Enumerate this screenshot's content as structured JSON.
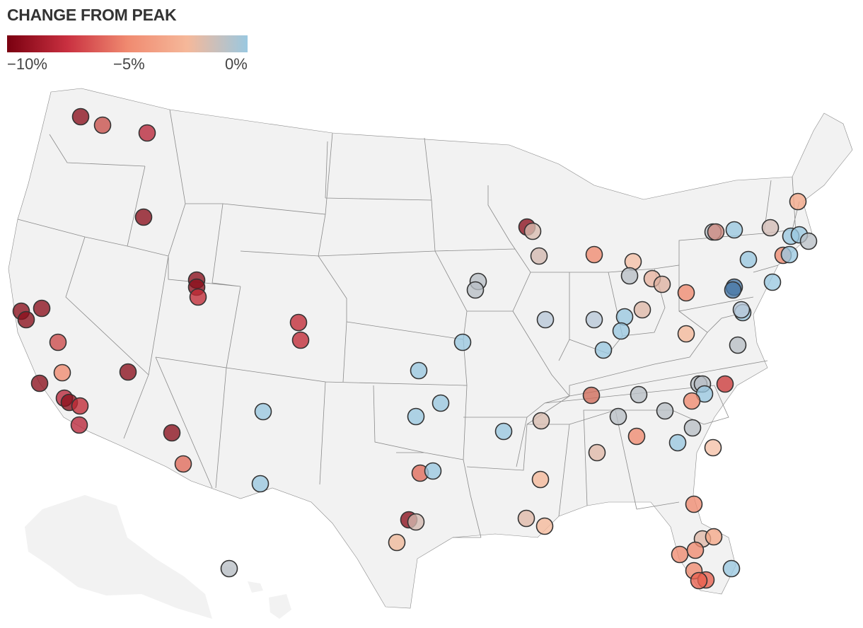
{
  "legend": {
    "title": "CHANGE FROM PEAK",
    "ticks": [
      "−10%",
      "−5%",
      "0%"
    ],
    "stops": [
      "#7a0010",
      "#c93040",
      "#f08a70",
      "#f5b89a",
      "#9ac8e0"
    ]
  },
  "map": {
    "land_color": "#f2f2f2",
    "border_color": "#8a8a8a",
    "marker_stroke": "#333333",
    "markers": [
      {
        "region": "wa",
        "color": "#8b0f1c"
      },
      {
        "region": "wa",
        "color": "#c8504a"
      },
      {
        "region": "wa",
        "color": "#b8263a"
      },
      {
        "region": "id",
        "color": "#8b0f1c"
      },
      {
        "region": "ut",
        "color": "#8b0f1c"
      },
      {
        "region": "ut",
        "color": "#8b0f1c"
      },
      {
        "region": "ut",
        "color": "#c02a36"
      },
      {
        "region": "co",
        "color": "#c02a36"
      },
      {
        "region": "co",
        "color": "#c02a36"
      },
      {
        "region": "ca",
        "color": "#8b0f1c"
      },
      {
        "region": "ca",
        "color": "#8b0f1c"
      },
      {
        "region": "ca",
        "color": "#8b0f1c"
      },
      {
        "region": "ca",
        "color": "#cc4a4a"
      },
      {
        "region": "ca",
        "color": "#f08a70"
      },
      {
        "region": "ca",
        "color": "#8b0f1c"
      },
      {
        "region": "nv",
        "color": "#8b0f1c"
      },
      {
        "region": "ca",
        "color": "#b8263a"
      },
      {
        "region": "ca",
        "color": "#8b0f1c"
      },
      {
        "region": "ca",
        "color": "#c02a36"
      },
      {
        "region": "ca",
        "color": "#b8263a"
      },
      {
        "region": "az",
        "color": "#8b0f1c"
      },
      {
        "region": "az",
        "color": "#e06a5a"
      },
      {
        "region": "nm",
        "color": "#9ac8e0"
      },
      {
        "region": "nm",
        "color": "#9ac8e0"
      },
      {
        "region": "ks",
        "color": "#9ac8e0"
      },
      {
        "region": "ok",
        "color": "#9ac8e0"
      },
      {
        "region": "ok",
        "color": "#9ac8e0"
      },
      {
        "region": "ne",
        "color": "#9ac8e0"
      },
      {
        "region": "ia",
        "color": "#b9bfc5"
      },
      {
        "region": "ia",
        "color": "#b9bfc5"
      },
      {
        "region": "tx",
        "color": "#e06a5a"
      },
      {
        "region": "tx",
        "color": "#9ac8e0"
      },
      {
        "region": "tx",
        "color": "#8b0f1c"
      },
      {
        "region": "tx",
        "color": "#d4b8b0"
      },
      {
        "region": "tx",
        "color": "#f0b89a"
      },
      {
        "region": "ar",
        "color": "#9ac8e0"
      },
      {
        "region": "wi",
        "color": "#8b0f1c"
      },
      {
        "region": "wi",
        "color": "#d9bcb0"
      },
      {
        "region": "wi",
        "color": "#d4b8b0"
      },
      {
        "region": "il",
        "color": "#b8c8d8"
      },
      {
        "region": "mi",
        "color": "#f08a70"
      },
      {
        "region": "mi",
        "color": "#f5c0a6"
      },
      {
        "region": "mi",
        "color": "#b9bfc5"
      },
      {
        "region": "oh",
        "color": "#e8b4a0"
      },
      {
        "region": "oh",
        "color": "#dfb2a2"
      },
      {
        "region": "oh",
        "color": "#dfb8a8"
      },
      {
        "region": "in",
        "color": "#b8c8d8"
      },
      {
        "region": "in",
        "color": "#9ac8e0"
      },
      {
        "region": "in",
        "color": "#9ac8e0"
      },
      {
        "region": "ky",
        "color": "#9ac8e0"
      },
      {
        "region": "pa",
        "color": "#f08a70"
      },
      {
        "region": "pa",
        "color": "#4a7aa8"
      },
      {
        "region": "pa",
        "color": "#4a7aa8"
      },
      {
        "region": "wv",
        "color": "#f5b89a"
      },
      {
        "region": "md",
        "color": "#b9bfc5"
      },
      {
        "region": "md",
        "color": "#9ac8e0"
      },
      {
        "region": "va",
        "color": "#b8c8d8"
      },
      {
        "region": "ny",
        "color": "#b9bfc5"
      },
      {
        "region": "ny",
        "color": "#d08a80"
      },
      {
        "region": "ny",
        "color": "#9ac8e0"
      },
      {
        "region": "ny",
        "color": "#d4bdb6"
      },
      {
        "region": "nj",
        "color": "#9ac8e0"
      },
      {
        "region": "nj",
        "color": "#9ac8e0"
      },
      {
        "region": "ct",
        "color": "#f08a70"
      },
      {
        "region": "ct",
        "color": "#9ac8e0"
      },
      {
        "region": "ma",
        "color": "#9ac8e0"
      },
      {
        "region": "ma",
        "color": "#9ac8e0"
      },
      {
        "region": "ma",
        "color": "#b9bfc5"
      },
      {
        "region": "nh",
        "color": "#f5a888"
      },
      {
        "region": "nc",
        "color": "#b9bfc5"
      },
      {
        "region": "nc",
        "color": "#b9bfc5"
      },
      {
        "region": "nc",
        "color": "#9ac8e0"
      },
      {
        "region": "nc",
        "color": "#cc3a3a"
      },
      {
        "region": "nc",
        "color": "#f08a70"
      },
      {
        "region": "tn",
        "color": "#d06a58"
      },
      {
        "region": "tn",
        "color": "#b9bfc5"
      },
      {
        "region": "tn",
        "color": "#b9bfc5"
      },
      {
        "region": "tn",
        "color": "#d9bcb0"
      },
      {
        "region": "ga",
        "color": "#b9bfc5"
      },
      {
        "region": "ga",
        "color": "#f08a70"
      },
      {
        "region": "sc",
        "color": "#b9bfc5"
      },
      {
        "region": "sc",
        "color": "#f5c0a6"
      },
      {
        "region": "ga",
        "color": "#9ac8e0"
      },
      {
        "region": "al",
        "color": "#e0b8a8"
      },
      {
        "region": "ms",
        "color": "#f5b89a"
      },
      {
        "region": "la",
        "color": "#e0b8a8"
      },
      {
        "region": "la",
        "color": "#f5b89a"
      },
      {
        "region": "fl",
        "color": "#f08a70"
      },
      {
        "region": "fl",
        "color": "#e0b8a8"
      },
      {
        "region": "fl",
        "color": "#f5a888"
      },
      {
        "region": "fl",
        "color": "#f08a70"
      },
      {
        "region": "fl",
        "color": "#f08a70"
      },
      {
        "region": "fl",
        "color": "#f08a70"
      },
      {
        "region": "fl",
        "color": "#e8604e"
      },
      {
        "region": "fl",
        "color": "#e8604e"
      },
      {
        "region": "fl",
        "color": "#9ac8e0"
      },
      {
        "region": "hi",
        "color": "#b9bfc5"
      }
    ]
  }
}
